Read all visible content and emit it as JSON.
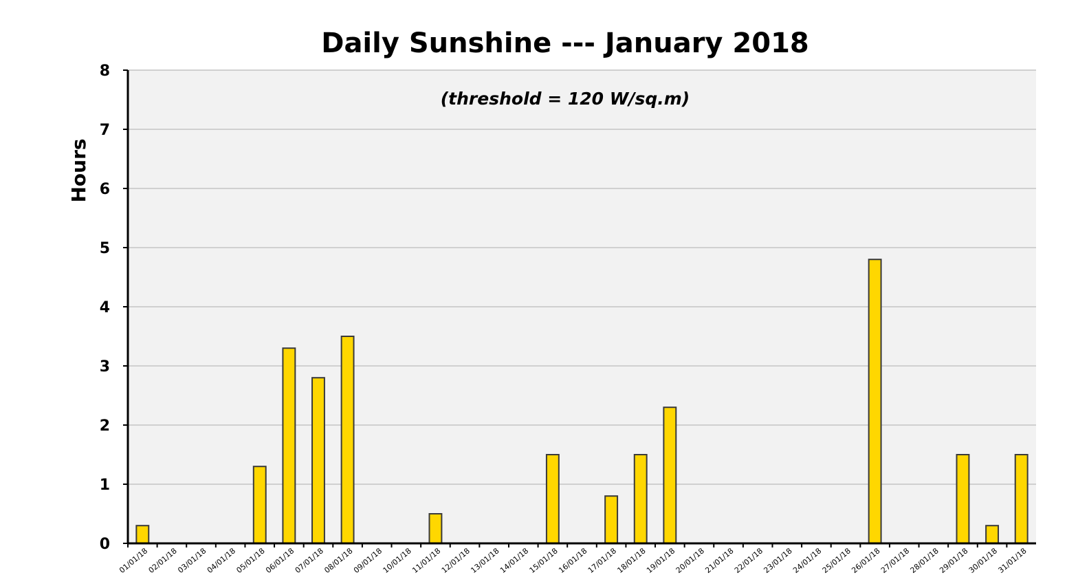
{
  "chart_data": {
    "type": "bar",
    "title": "Daily Sunshine --- January 2018",
    "subtitle": "(threshold = 120 W/sq.m)",
    "ylabel": "Hours",
    "xlabel": "",
    "ylim": [
      0,
      8
    ],
    "yticks": [
      "0",
      "1",
      "2",
      "3",
      "4",
      "5",
      "6",
      "7",
      "8"
    ],
    "grid": true,
    "categories": [
      "01/01/18",
      "02/01/18",
      "03/01/18",
      "04/01/18",
      "05/01/18",
      "06/01/18",
      "07/01/18",
      "08/01/18",
      "09/01/18",
      "10/01/18",
      "11/01/18",
      "12/01/18",
      "13/01/18",
      "14/01/18",
      "15/01/18",
      "16/01/18",
      "17/01/18",
      "18/01/18",
      "19/01/18",
      "20/01/18",
      "21/01/18",
      "22/01/18",
      "23/01/18",
      "24/01/18",
      "25/01/18",
      "26/01/18",
      "27/01/18",
      "28/01/18",
      "29/01/18",
      "30/01/18",
      "31/01/18"
    ],
    "values": [
      0.3,
      0,
      0,
      0,
      1.3,
      3.3,
      2.8,
      3.5,
      0,
      0,
      0.5,
      0,
      0,
      0,
      1.5,
      0,
      0.8,
      1.5,
      2.3,
      0,
      0,
      0,
      0,
      0,
      0,
      4.8,
      0,
      0,
      1.5,
      0.3,
      1.5
    ],
    "colors": {
      "bar_fill": "#FFD700",
      "bar_stroke": "#3a3a3a",
      "plot_background": "#F2F2F2",
      "gridline": "#D0D0D0",
      "axis": "#000000"
    }
  }
}
